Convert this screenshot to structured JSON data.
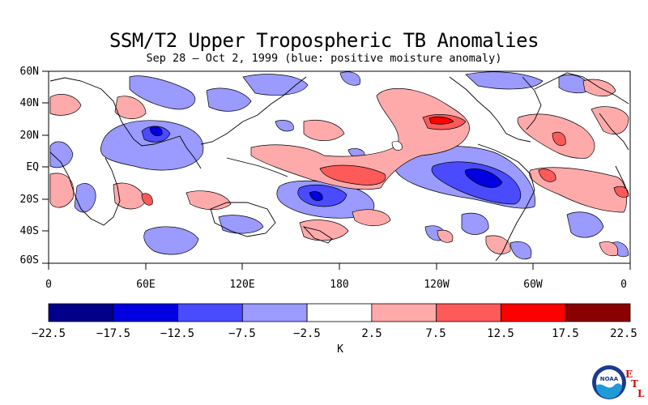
{
  "header": {
    "title": "SSM/T2 Upper Tropospheric TB Anomalies",
    "subtitle": "Sep 28 – Oct 2, 1999 (blue: positive moisture anomaly)"
  },
  "map": {
    "lat_labels": [
      "60N",
      "40N",
      "20N",
      "EQ",
      "20S",
      "40S",
      "60S"
    ],
    "lon_labels": [
      "0",
      "60E",
      "120E",
      "180",
      "120W",
      "60W",
      "0"
    ],
    "lat_range": [
      -60,
      60
    ],
    "lon_range": [
      0,
      360
    ],
    "anomaly_features": [
      {
        "lon": 195,
        "lat": 2,
        "value": 13,
        "desc": "central Pacific warm/dry band"
      },
      {
        "lon": 240,
        "lat": 20,
        "value": 11,
        "desc": "NE Pacific warm/dry"
      },
      {
        "lon": 270,
        "lat": -8,
        "value": -16,
        "desc": "eastern Pacific moist"
      },
      {
        "lon": 165,
        "lat": -22,
        "value": -16,
        "desc": "SW Pacific moist"
      },
      {
        "lon": 68,
        "lat": 21,
        "value": -14,
        "desc": "Arabian Sea moist"
      },
      {
        "lon": 62,
        "lat": -20,
        "value": 11,
        "desc": "Indian Ocean warm"
      },
      {
        "lon": 306,
        "lat": 4,
        "value": 10,
        "desc": "Atlantic warm"
      }
    ]
  },
  "colorbar": {
    "colors": [
      "#00008b",
      "#0000e0",
      "#4a4aff",
      "#9a9aff",
      "#ffffff",
      "#ffaaaa",
      "#ff5a5a",
      "#ff0000",
      "#8b0000"
    ],
    "labels": [
      "−22.5",
      "−17.5",
      "−12.5",
      "−7.5",
      "−2.5",
      "2.5",
      "7.5",
      "12.5",
      "17.5",
      "22.5"
    ],
    "units": "K"
  },
  "logo": {
    "name": "noaa-logo",
    "text": "NOAA",
    "etl_letters": [
      "E",
      "T",
      "L"
    ]
  }
}
